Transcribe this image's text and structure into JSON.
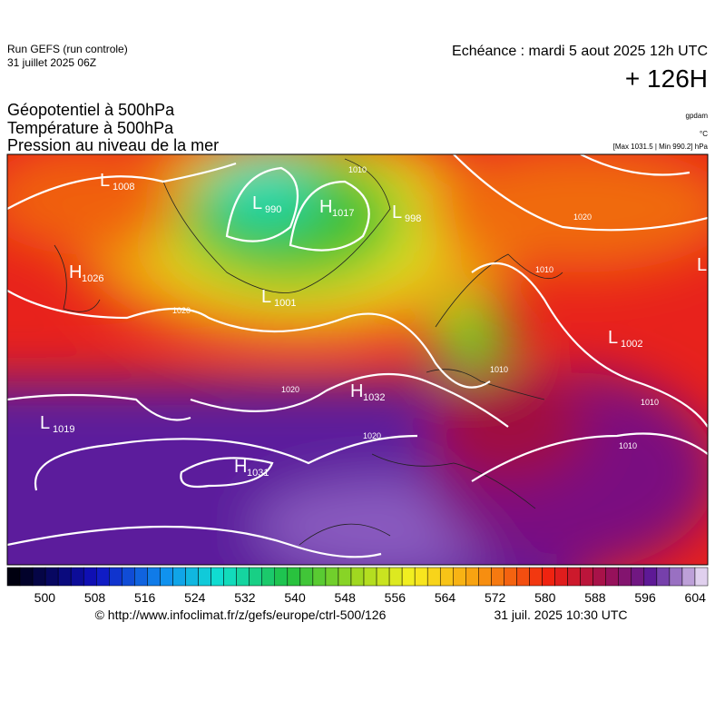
{
  "header": {
    "run": "Run GEFS (run controle)",
    "run_date": "31 juillet 2025 06Z",
    "valid": "Echéance : mardi 5 aout 2025 12h UTC",
    "lead": "+ 126H"
  },
  "titles": [
    "Géopotentiel à 500hPa",
    "Température à 500hPa",
    "Pression au niveau de la mer"
  ],
  "units": {
    "geopotential": "gpdam",
    "temperature": "°C",
    "pressure": "[Max 1031.5 | Min 990.2] hPa"
  },
  "centers": [
    {
      "letter": "L",
      "value": "1008"
    },
    {
      "letter": "L",
      "value": "990"
    },
    {
      "letter": "H",
      "value": "1017"
    },
    {
      "letter": "L",
      "value": "998"
    },
    {
      "letter": "H",
      "value": "1026"
    },
    {
      "letter": "L",
      "value": "1001"
    },
    {
      "letter": "L",
      "value": "1002"
    },
    {
      "letter": "H",
      "value": "1032"
    },
    {
      "letter": "L",
      "value": "1019"
    },
    {
      "letter": "H",
      "value": "1031"
    },
    {
      "letter": "L",
      "value": ""
    }
  ],
  "isobar_labels": [
    "1010",
    "1020",
    "1020",
    "1010",
    "1020",
    "1010",
    "1010",
    "1010",
    "1020"
  ],
  "colorbar": {
    "ticks": [
      500,
      508,
      516,
      524,
      532,
      540,
      548,
      556,
      564,
      572,
      580,
      588,
      596,
      604
    ]
  },
  "footer": {
    "source": "© http://www.infoclimat.fr/z/gefs/europe/ctrl-500/126",
    "issued": "31 juil. 2025 10:30 UTC"
  }
}
